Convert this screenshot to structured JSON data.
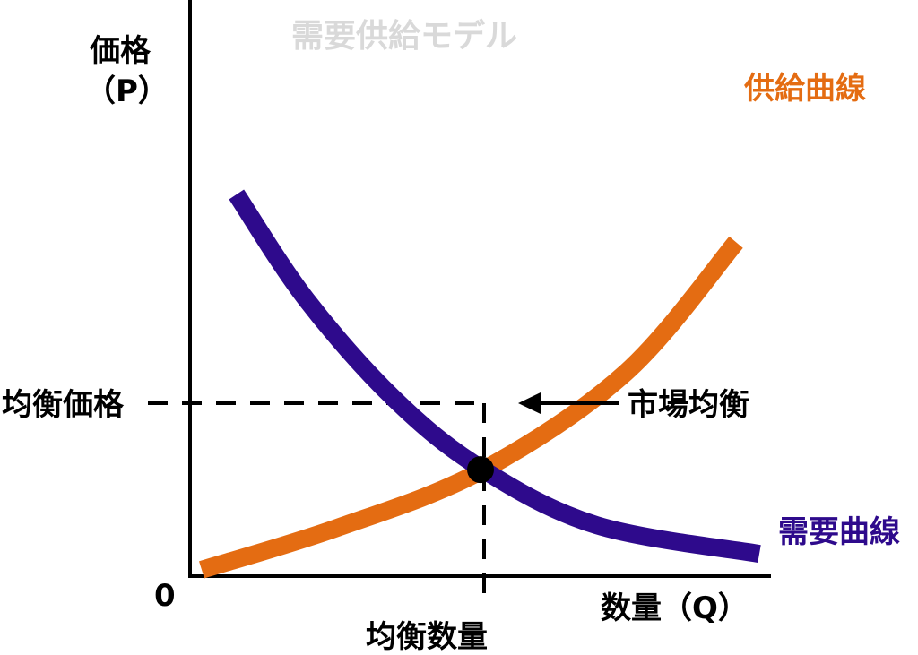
{
  "chart_data": {
    "type": "line",
    "title": "需要供給モデル",
    "ylabel": "価格",
    "ylabel_unit": "（P）",
    "xlabel": "数量（Q）",
    "origin_label": "0",
    "series": [
      {
        "name": "供給曲線",
        "color": "#E46C12",
        "points": [
          [
            0.02,
            0.02
          ],
          [
            0.25,
            0.15
          ],
          [
            0.5,
            0.33
          ],
          [
            0.75,
            0.64
          ],
          [
            0.94,
            1.05
          ]
        ]
      },
      {
        "name": "需要曲線",
        "color": "#2E0A8C",
        "points": [
          [
            0.08,
            1.2
          ],
          [
            0.2,
            0.87
          ],
          [
            0.35,
            0.56
          ],
          [
            0.5,
            0.34
          ],
          [
            0.7,
            0.16
          ],
          [
            0.98,
            0.07
          ]
        ]
      }
    ],
    "equilibrium": {
      "x": 0.5,
      "y": 0.335,
      "label": "市場均衡",
      "price_label": "均衡価格",
      "quantity_label": "均衡数量"
    },
    "colors": {
      "axis": "#000000",
      "title": "#D9D9D9",
      "supply": "#E46C12",
      "demand": "#2E0A8C"
    }
  }
}
